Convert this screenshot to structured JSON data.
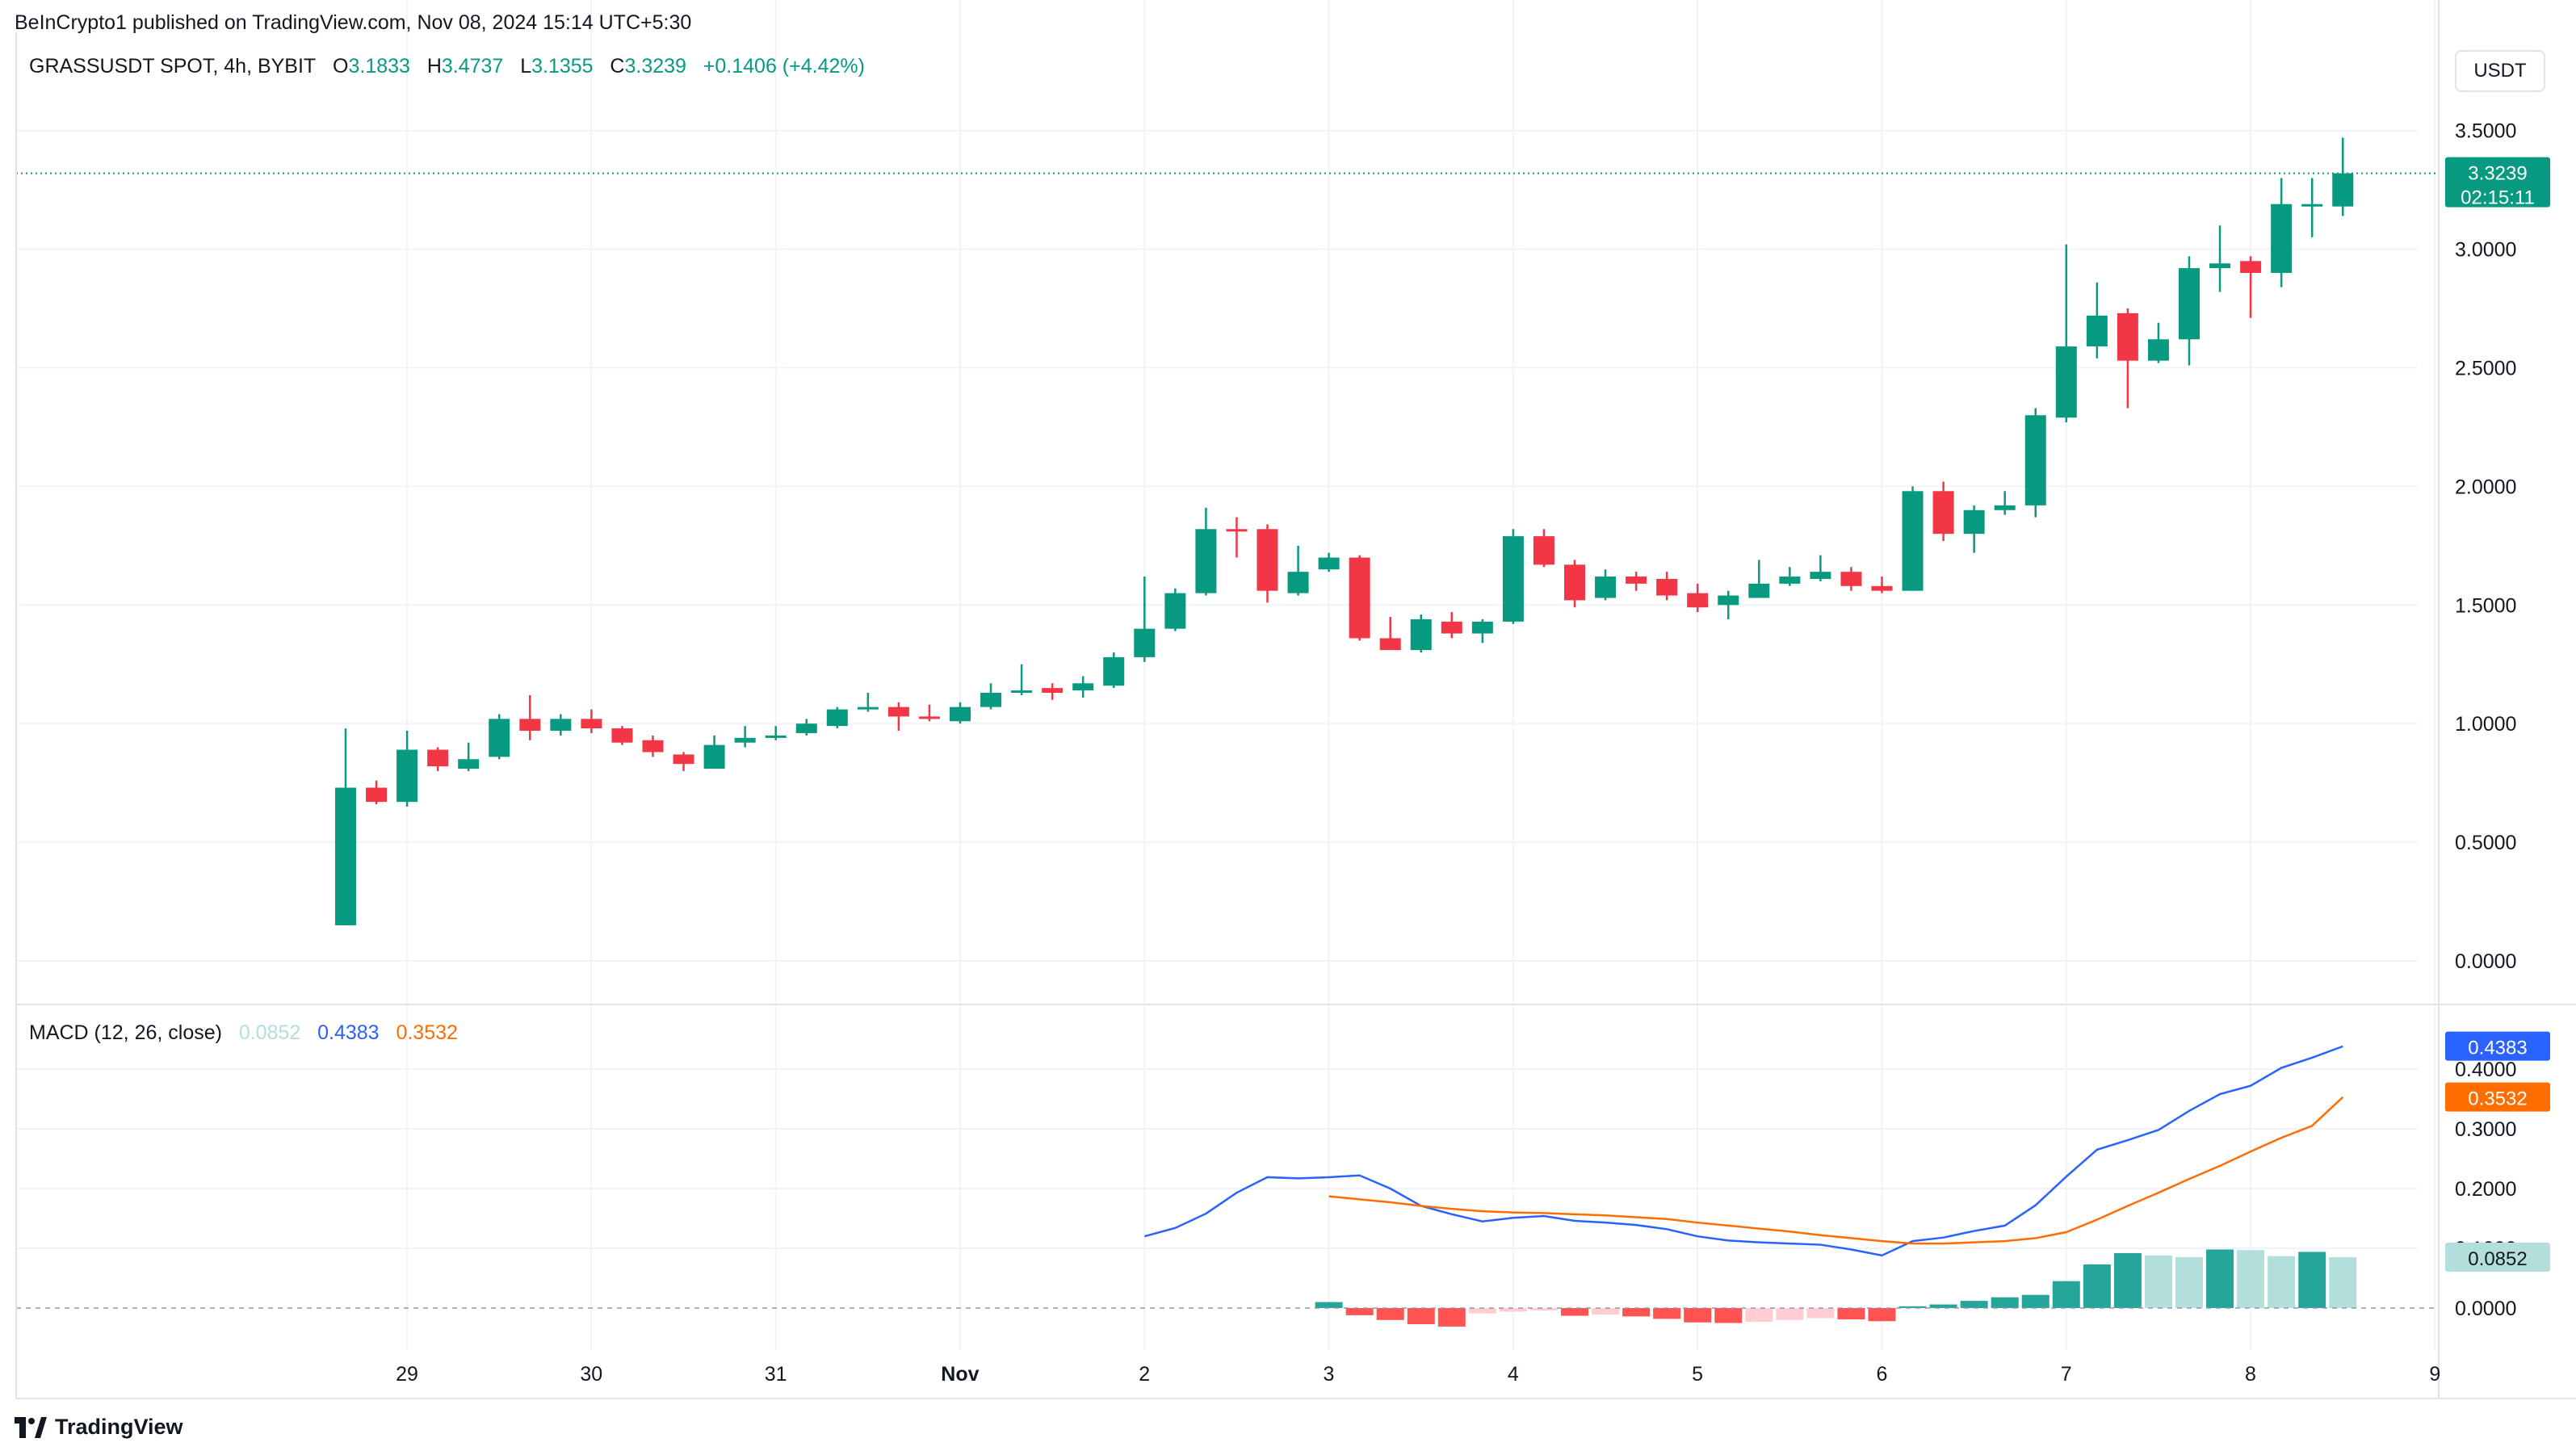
{
  "header": {
    "published": "BeInCrypto1 published on TradingView.com, Nov 08, 2024 15:14 UTC+5:30"
  },
  "symbol": {
    "name": "GRASSUSDT SPOT, 4h, BYBIT",
    "o_label": "O",
    "o": "3.1833",
    "h_label": "H",
    "h": "3.4737",
    "l_label": "L",
    "l": "3.1355",
    "c_label": "C",
    "c": "3.3239",
    "change": "+0.1406 (+4.42%)"
  },
  "currency_button": "USDT",
  "price_axis": {
    "ticks": [
      "3.5000",
      "3.0000",
      "2.5000",
      "2.0000",
      "1.5000",
      "1.0000",
      "0.5000",
      "0.0000"
    ],
    "tick_values": [
      3.5,
      3.0,
      2.5,
      2.0,
      1.5,
      1.0,
      0.5,
      0.0
    ],
    "last_price": "3.3239",
    "countdown": "02:15:11"
  },
  "macd": {
    "label": "MACD (12, 26, close)",
    "hist_value": "0.0852",
    "macd_value": "0.4383",
    "signal_value": "0.3532",
    "ticks": [
      "0.4000",
      "0.3000",
      "0.2000",
      "0.1000",
      "0.0000"
    ],
    "tick_values": [
      0.4,
      0.3,
      0.2,
      0.1,
      0.0
    ]
  },
  "time_axis": {
    "labels": [
      "29",
      "30",
      "31",
      "Nov",
      "2",
      "3",
      "4",
      "5",
      "6",
      "7",
      "8",
      "9"
    ],
    "positions": [
      0,
      6,
      12,
      18,
      24,
      30,
      36,
      42,
      48,
      54,
      60,
      66
    ]
  },
  "colors": {
    "up": "#089981",
    "down": "#f23645",
    "macd_line": "#2962ff",
    "signal_line": "#ff6d00",
    "hist_up_strong": "#26a69a",
    "hist_up_weak": "#b2dfdb",
    "hist_down_strong": "#ff5252",
    "hist_down_weak": "#ffcdd2",
    "grid": "#f0f3fa",
    "text": "#131722"
  },
  "brand": "TradingView",
  "chart_data": [
    {
      "type": "candlestick",
      "title": "GRASSUSDT SPOT, 4h, BYBIT",
      "x_unit": "4h bar index (0 = first bar, Oct 28 20:00 region)",
      "ylim": [
        -0.1,
        3.55
      ],
      "candles": [
        {
          "i": 0,
          "o": 0.15,
          "h": 0.98,
          "l": 0.15,
          "c": 0.73
        },
        {
          "i": 1,
          "o": 0.73,
          "h": 0.76,
          "l": 0.66,
          "c": 0.67
        },
        {
          "i": 2,
          "o": 0.67,
          "h": 0.97,
          "l": 0.65,
          "c": 0.89
        },
        {
          "i": 3,
          "o": 0.89,
          "h": 0.9,
          "l": 0.8,
          "c": 0.82
        },
        {
          "i": 4,
          "o": 0.81,
          "h": 0.92,
          "l": 0.8,
          "c": 0.85
        },
        {
          "i": 5,
          "o": 0.86,
          "h": 1.04,
          "l": 0.85,
          "c": 1.02
        },
        {
          "i": 6,
          "o": 1.02,
          "h": 1.12,
          "l": 0.93,
          "c": 0.97
        },
        {
          "i": 7,
          "o": 0.97,
          "h": 1.04,
          "l": 0.95,
          "c": 1.02
        },
        {
          "i": 8,
          "o": 1.02,
          "h": 1.06,
          "l": 0.96,
          "c": 0.98
        },
        {
          "i": 9,
          "o": 0.98,
          "h": 0.99,
          "l": 0.91,
          "c": 0.92
        },
        {
          "i": 10,
          "o": 0.93,
          "h": 0.95,
          "l": 0.86,
          "c": 0.88
        },
        {
          "i": 11,
          "o": 0.87,
          "h": 0.88,
          "l": 0.8,
          "c": 0.83
        },
        {
          "i": 12,
          "o": 0.81,
          "h": 0.95,
          "l": 0.81,
          "c": 0.91
        },
        {
          "i": 13,
          "o": 0.92,
          "h": 0.99,
          "l": 0.9,
          "c": 0.94
        },
        {
          "i": 14,
          "o": 0.94,
          "h": 0.99,
          "l": 0.93,
          "c": 0.95
        },
        {
          "i": 15,
          "o": 0.96,
          "h": 1.02,
          "l": 0.95,
          "c": 1.0
        },
        {
          "i": 16,
          "o": 0.99,
          "h": 1.07,
          "l": 0.98,
          "c": 1.06
        },
        {
          "i": 17,
          "o": 1.06,
          "h": 1.13,
          "l": 1.05,
          "c": 1.07
        },
        {
          "i": 18,
          "o": 1.07,
          "h": 1.09,
          "l": 0.97,
          "c": 1.03
        },
        {
          "i": 19,
          "o": 1.03,
          "h": 1.08,
          "l": 1.01,
          "c": 1.02
        },
        {
          "i": 20,
          "o": 1.01,
          "h": 1.09,
          "l": 1.0,
          "c": 1.07
        },
        {
          "i": 21,
          "o": 1.07,
          "h": 1.17,
          "l": 1.06,
          "c": 1.13
        },
        {
          "i": 22,
          "o": 1.13,
          "h": 1.25,
          "l": 1.12,
          "c": 1.14
        },
        {
          "i": 23,
          "o": 1.15,
          "h": 1.17,
          "l": 1.1,
          "c": 1.13
        },
        {
          "i": 24,
          "o": 1.14,
          "h": 1.2,
          "l": 1.11,
          "c": 1.17
        },
        {
          "i": 25,
          "o": 1.16,
          "h": 1.3,
          "l": 1.15,
          "c": 1.28
        },
        {
          "i": 26,
          "o": 1.28,
          "h": 1.62,
          "l": 1.26,
          "c": 1.4
        },
        {
          "i": 27,
          "o": 1.4,
          "h": 1.57,
          "l": 1.39,
          "c": 1.55
        },
        {
          "i": 28,
          "o": 1.55,
          "h": 1.91,
          "l": 1.54,
          "c": 1.82
        },
        {
          "i": 29,
          "o": 1.82,
          "h": 1.87,
          "l": 1.7,
          "c": 1.81
        },
        {
          "i": 30,
          "o": 1.82,
          "h": 1.84,
          "l": 1.51,
          "c": 1.56
        },
        {
          "i": 31,
          "o": 1.55,
          "h": 1.75,
          "l": 1.54,
          "c": 1.64
        },
        {
          "i": 32,
          "o": 1.65,
          "h": 1.72,
          "l": 1.64,
          "c": 1.7
        },
        {
          "i": 33,
          "o": 1.7,
          "h": 1.71,
          "l": 1.35,
          "c": 1.36
        },
        {
          "i": 34,
          "o": 1.36,
          "h": 1.45,
          "l": 1.31,
          "c": 1.31
        },
        {
          "i": 35,
          "o": 1.31,
          "h": 1.46,
          "l": 1.3,
          "c": 1.44
        },
        {
          "i": 36,
          "o": 1.43,
          "h": 1.47,
          "l": 1.36,
          "c": 1.38
        },
        {
          "i": 37,
          "o": 1.38,
          "h": 1.44,
          "l": 1.34,
          "c": 1.43
        },
        {
          "i": 38,
          "o": 1.43,
          "h": 1.82,
          "l": 1.42,
          "c": 1.79
        },
        {
          "i": 39,
          "o": 1.79,
          "h": 1.82,
          "l": 1.66,
          "c": 1.67
        },
        {
          "i": 40,
          "o": 1.67,
          "h": 1.69,
          "l": 1.49,
          "c": 1.52
        },
        {
          "i": 41,
          "o": 1.53,
          "h": 1.65,
          "l": 1.52,
          "c": 1.62
        },
        {
          "i": 42,
          "o": 1.62,
          "h": 1.64,
          "l": 1.56,
          "c": 1.59
        },
        {
          "i": 43,
          "o": 1.61,
          "h": 1.64,
          "l": 1.52,
          "c": 1.54
        },
        {
          "i": 44,
          "o": 1.55,
          "h": 1.59,
          "l": 1.47,
          "c": 1.49
        },
        {
          "i": 45,
          "o": 1.5,
          "h": 1.56,
          "l": 1.44,
          "c": 1.54
        },
        {
          "i": 46,
          "o": 1.53,
          "h": 1.69,
          "l": 1.53,
          "c": 1.59
        },
        {
          "i": 47,
          "o": 1.59,
          "h": 1.66,
          "l": 1.58,
          "c": 1.62
        },
        {
          "i": 48,
          "o": 1.61,
          "h": 1.71,
          "l": 1.6,
          "c": 1.64
        },
        {
          "i": 49,
          "o": 1.64,
          "h": 1.66,
          "l": 1.56,
          "c": 1.58
        },
        {
          "i": 50,
          "o": 1.58,
          "h": 1.62,
          "l": 1.55,
          "c": 1.56
        },
        {
          "i": 51,
          "o": 1.56,
          "h": 2.0,
          "l": 1.56,
          "c": 1.98
        },
        {
          "i": 52,
          "o": 1.98,
          "h": 2.02,
          "l": 1.77,
          "c": 1.8
        },
        {
          "i": 53,
          "o": 1.8,
          "h": 1.92,
          "l": 1.72,
          "c": 1.9
        },
        {
          "i": 54,
          "o": 1.9,
          "h": 1.98,
          "l": 1.88,
          "c": 1.92
        },
        {
          "i": 55,
          "o": 1.92,
          "h": 2.33,
          "l": 1.87,
          "c": 2.3
        },
        {
          "i": 56,
          "o": 2.29,
          "h": 3.02,
          "l": 2.27,
          "c": 2.59
        },
        {
          "i": 57,
          "o": 2.59,
          "h": 2.86,
          "l": 2.54,
          "c": 2.72
        },
        {
          "i": 58,
          "o": 2.73,
          "h": 2.75,
          "l": 2.33,
          "c": 2.53
        },
        {
          "i": 59,
          "o": 2.53,
          "h": 2.69,
          "l": 2.52,
          "c": 2.62
        },
        {
          "i": 60,
          "o": 2.62,
          "h": 2.97,
          "l": 2.51,
          "c": 2.92
        },
        {
          "i": 61,
          "o": 2.92,
          "h": 3.1,
          "l": 2.82,
          "c": 2.94
        },
        {
          "i": 62,
          "o": 2.95,
          "h": 2.97,
          "l": 2.71,
          "c": 2.9
        },
        {
          "i": 63,
          "o": 2.9,
          "h": 3.3,
          "l": 2.84,
          "c": 3.19
        },
        {
          "i": 64,
          "o": 3.19,
          "h": 3.3,
          "l": 3.05,
          "c": 3.19
        },
        {
          "i": 65,
          "o": 3.18,
          "h": 3.47,
          "l": 3.14,
          "c": 3.32
        }
      ]
    },
    {
      "type": "line",
      "title": "MACD (12, 26, close)",
      "ylim": [
        -0.03,
        0.47
      ],
      "series": [
        {
          "name": "MACD",
          "x": [
            26,
            27,
            28,
            29,
            30,
            31,
            32,
            33,
            34,
            35,
            36,
            37,
            38,
            39,
            40,
            41,
            42,
            43,
            44,
            45,
            46,
            47,
            48,
            49,
            50,
            51,
            52,
            53,
            54,
            55,
            56,
            57,
            58,
            59,
            60,
            61,
            62,
            63,
            64,
            65
          ],
          "values": [
            0.12,
            0.134,
            0.158,
            0.193,
            0.219,
            0.217,
            0.219,
            0.222,
            0.2,
            0.171,
            0.157,
            0.145,
            0.151,
            0.154,
            0.146,
            0.143,
            0.139,
            0.132,
            0.12,
            0.113,
            0.11,
            0.108,
            0.106,
            0.098,
            0.088,
            0.112,
            0.118,
            0.129,
            0.138,
            0.172,
            0.22,
            0.265,
            0.281,
            0.298,
            0.33,
            0.358,
            0.372,
            0.402,
            0.419,
            0.438
          ]
        },
        {
          "name": "Signal",
          "x": [
            32,
            33,
            34,
            35,
            36,
            37,
            38,
            39,
            40,
            41,
            42,
            43,
            44,
            45,
            46,
            47,
            48,
            49,
            50,
            51,
            52,
            53,
            54,
            55,
            56,
            57,
            58,
            59,
            60,
            61,
            62,
            63,
            64,
            65
          ],
          "values": [
            0.187,
            0.182,
            0.177,
            0.171,
            0.166,
            0.162,
            0.16,
            0.159,
            0.157,
            0.155,
            0.152,
            0.149,
            0.143,
            0.138,
            0.133,
            0.128,
            0.122,
            0.117,
            0.112,
            0.108,
            0.108,
            0.11,
            0.112,
            0.117,
            0.127,
            0.148,
            0.171,
            0.193,
            0.216,
            0.238,
            0.262,
            0.285,
            0.305,
            0.353
          ]
        }
      ]
    },
    {
      "type": "bar",
      "title": "MACD histogram",
      "x": [
        32,
        33,
        34,
        35,
        36,
        37,
        38,
        39,
        40,
        41,
        42,
        43,
        44,
        45,
        46,
        47,
        48,
        49,
        50,
        51,
        52,
        53,
        54,
        55,
        56,
        57,
        58,
        59,
        60,
        61,
        62,
        63,
        64,
        65
      ],
      "values": [
        0.01,
        -0.012,
        -0.02,
        -0.027,
        -0.031,
        -0.009,
        -0.006,
        -0.004,
        -0.013,
        -0.011,
        -0.014,
        -0.018,
        -0.024,
        -0.025,
        -0.023,
        -0.02,
        -0.017,
        -0.019,
        -0.022,
        0.003,
        0.006,
        0.012,
        0.018,
        0.022,
        0.045,
        0.073,
        0.092,
        0.088,
        0.085,
        0.098,
        0.097,
        0.087,
        0.094,
        0.085
      ]
    }
  ]
}
